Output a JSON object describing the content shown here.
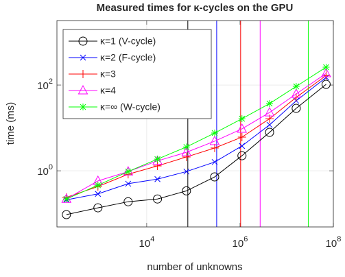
{
  "chart_data": {
    "type": "line",
    "title": "Measured times for κ-cycles on the GPU",
    "xlabel": "number of unknowns",
    "ylabel": "time (ms)",
    "xscale": "log",
    "yscale": "log",
    "xlim": [
      119,
      100000000
    ],
    "ylim": [
      0.049,
      3190
    ],
    "xticks": [
      {
        "value": 10000,
        "label": "10^4"
      },
      {
        "value": 1000000,
        "label": "10^6"
      },
      {
        "value": 100000000,
        "label": "10^8"
      }
    ],
    "yticks": [
      {
        "value": 1,
        "label": "10^0"
      },
      {
        "value": 100,
        "label": "10^2"
      }
    ],
    "grid": true,
    "legend": "northwest",
    "x": [
      190,
      900,
      4000,
      17000,
      71000,
      286000,
      1100000,
      4300000,
      16000000,
      70000000
    ],
    "series": [
      {
        "name": "κ=1 (V-cycle)",
        "color": "#000000",
        "marker": "circle",
        "vline": 76000,
        "values": [
          0.095,
          0.137,
          0.19,
          0.22,
          0.34,
          0.72,
          2.25,
          7.9,
          28.6,
          104
        ]
      },
      {
        "name": "κ=2 (F-cycle)",
        "color": "#0000ff",
        "marker": "x",
        "vline": 316000,
        "values": [
          0.21,
          0.29,
          0.5,
          0.64,
          0.96,
          1.6,
          3.8,
          11.8,
          43,
          150
        ]
      },
      {
        "name": "κ=3",
        "color": "#ff0000",
        "marker": "plus",
        "vline": 1030000,
        "values": [
          0.24,
          0.43,
          0.83,
          1.3,
          2.1,
          3.4,
          6.1,
          16.4,
          51.5,
          167
        ]
      },
      {
        "name": "κ=4",
        "color": "#ff00ff",
        "marker": "triangle",
        "vline": 2700000,
        "values": [
          0.22,
          0.58,
          0.96,
          1.7,
          2.7,
          4.9,
          9.5,
          22.9,
          62,
          187
        ]
      },
      {
        "name": "κ=∞ (W-cycle)",
        "color": "#00ff00",
        "marker": "asterisk",
        "vline": 29000000,
        "values": [
          0.22,
          0.46,
          0.96,
          1.87,
          3.6,
          7.6,
          16.4,
          37,
          93,
          261
        ]
      }
    ]
  }
}
